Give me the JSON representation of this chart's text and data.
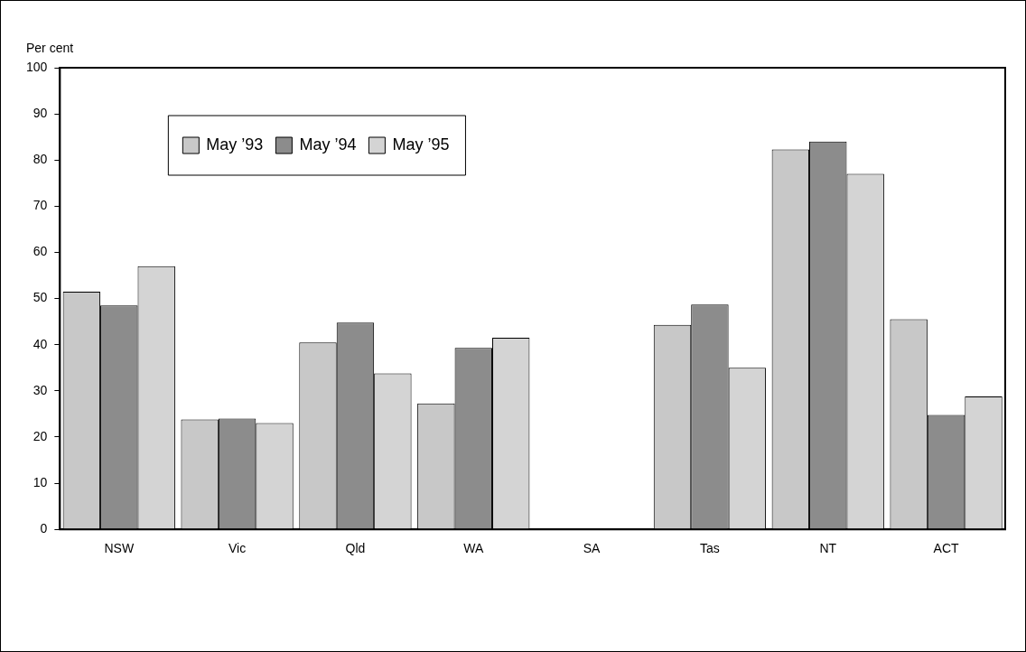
{
  "chart_data": {
    "type": "bar",
    "ylabel": "Per cent",
    "categories": [
      "NSW",
      "Vic",
      "Qld",
      "WA",
      "SA",
      "Tas",
      "NT",
      "ACT"
    ],
    "series": [
      {
        "name": "May ’93",
        "color": "#c8c8c8",
        "values": [
          51.5,
          23.8,
          40.5,
          27.3,
          null,
          44.3,
          82.3,
          45.5
        ]
      },
      {
        "name": "May ’94",
        "color": "#8c8c8c",
        "values": [
          48.5,
          24,
          44.8,
          39.3,
          null,
          48.7,
          84,
          24.8
        ]
      },
      {
        "name": "May ’95",
        "color": "#d4d4d4",
        "values": [
          57,
          23,
          33.8,
          41.5,
          null,
          35,
          77,
          28.8
        ]
      }
    ],
    "ylim": [
      0,
      100
    ],
    "yticks": [
      0,
      10,
      20,
      30,
      40,
      50,
      60,
      70,
      80,
      90,
      100
    ],
    "grid": false,
    "legend": "top left"
  }
}
